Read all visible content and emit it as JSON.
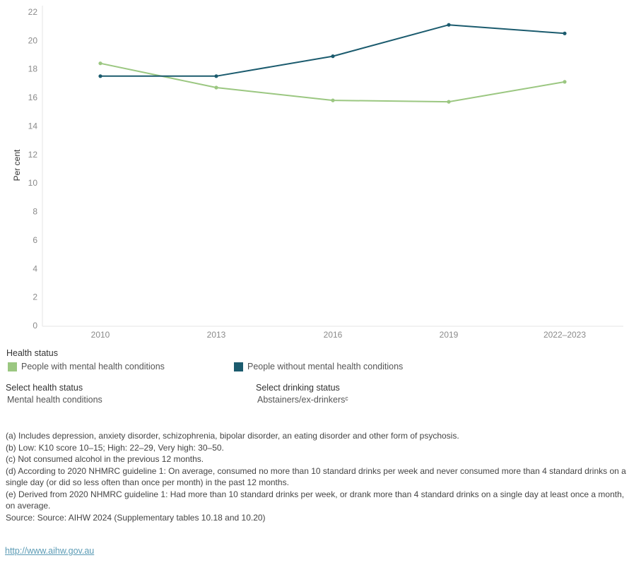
{
  "chart_data": {
    "type": "line",
    "title": "",
    "xlabel": "",
    "ylabel": "Per cent",
    "x": [
      "2010",
      "2013",
      "2016",
      "2019",
      "2022–2023"
    ],
    "ylim": [
      0,
      22
    ],
    "yticks": [
      0,
      2,
      4,
      6,
      8,
      10,
      12,
      14,
      16,
      18,
      20,
      22
    ],
    "grid": false,
    "series": [
      {
        "name": "People with mental health conditions",
        "color": "#9bc781",
        "values": [
          18.4,
          16.7,
          15.8,
          15.7,
          17.1
        ]
      },
      {
        "name": "People without mental health conditions",
        "color": "#1b5b6e",
        "values": [
          17.5,
          17.5,
          18.9,
          21.1,
          20.5
        ]
      }
    ]
  },
  "legend": {
    "title": "Health status",
    "items": [
      {
        "label": "People with mental health conditions",
        "color": "#9bc781"
      },
      {
        "label": "People without mental health conditions",
        "color": "#1b5b6e"
      }
    ]
  },
  "filters": [
    {
      "label": "Select health status",
      "value": "Mental health conditions"
    },
    {
      "label": "Select drinking status",
      "value": "Abstainers/ex-drinkersᶜ"
    }
  ],
  "notes": [
    "(a) Includes depression, anxiety disorder, schizophrenia, bipolar disorder, an eating disorder and other form of psychosis.",
    "(b) Low: K10 score 10–15; High: 22–29, Very high: 30–50.",
    "(c) Not consumed alcohol in the previous 12 months.",
    "(d) According to 2020 NHMRC guideline 1: On average, consumed no more than 10 standard drinks per week and never consumed more than 4 standard drinks on a single day (or did so less often than once per month) in the past 12 months.",
    "(e) Derived from 2020 NHMRC guideline 1: Had more than 10 standard drinks per week, or drank more than 4 standard drinks on a single day at least once a month, on average.",
    "Source: Source: AIHW 2024 (Supplementary tables 10.18 and 10.20)"
  ],
  "footer_link": "http://www.aihw.gov.au"
}
